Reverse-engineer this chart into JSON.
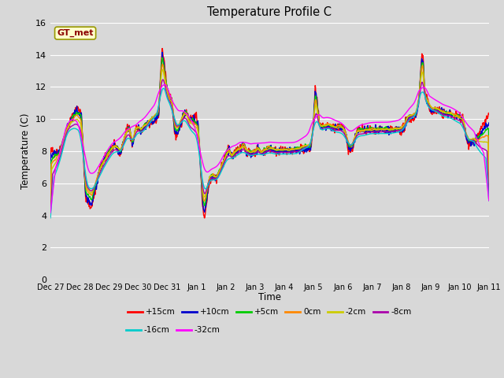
{
  "title": "Temperature Profile C",
  "xlabel": "Time",
  "ylabel": "Temperature (C)",
  "ylim": [
    0,
    16
  ],
  "yticks": [
    0,
    2,
    4,
    6,
    8,
    10,
    12,
    14,
    16
  ],
  "bg_color": "#d8d8d8",
  "plot_bg_color": "#d8d8d8",
  "grid_color": "#ffffff",
  "legend_label": "GT_met",
  "series": [
    {
      "label": "+15cm",
      "color": "#ff0000"
    },
    {
      "label": "+10cm",
      "color": "#0000cc"
    },
    {
      "label": "+5cm",
      "color": "#00cc00"
    },
    {
      "label": "0cm",
      "color": "#ff8800"
    },
    {
      "label": "-2cm",
      "color": "#cccc00"
    },
    {
      "label": "-8cm",
      "color": "#aa00aa"
    },
    {
      "label": "-16cm",
      "color": "#00cccc"
    },
    {
      "label": "-32cm",
      "color": "#ff00ff"
    }
  ],
  "xtick_labels": [
    "Dec 27",
    "Dec 28",
    "Dec 29",
    "Dec 30",
    "Dec 31",
    "Jan 1",
    "Jan 2",
    "Jan 3",
    "Jan 4",
    "Jan 5",
    "Jan 6",
    "Jan 7",
    "Jan 8",
    "Jan 9",
    "Jan 10",
    "Jan 11"
  ],
  "figsize": [
    6.4,
    4.8
  ],
  "dpi": 100
}
